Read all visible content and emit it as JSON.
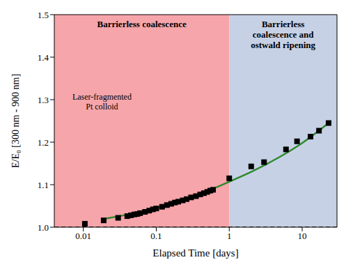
{
  "chart_data": {
    "type": "scatter",
    "log": "x",
    "grid": false,
    "x_label": "Elapsed Time [days]",
    "y_label": "E/E₀ [300 nm - 900 nm]",
    "xlim": [
      0.004,
      30
    ],
    "xticks": [
      0.01,
      0.1,
      1,
      10
    ],
    "ylim": [
      1,
      1.5
    ],
    "yticks": [
      {
        "value": 1,
        "label": "1.0"
      },
      {
        "value": 1.1,
        "label": "1.1"
      },
      {
        "value": 1.2,
        "label": "1.2"
      },
      {
        "value": 1.3,
        "label": "1.3"
      },
      {
        "value": 1.4,
        "label": "1.4"
      },
      {
        "value": 1.5,
        "label": "1.5"
      }
    ],
    "regions": [
      {
        "x": [
          0.004,
          1
        ],
        "color": "#f6a5aa",
        "label": "Barrierless coalescence"
      },
      {
        "x": [
          1,
          30
        ],
        "color": "#c7d1e5",
        "label": "Barrierless coalescence and ostwald ripening"
      }
    ],
    "annotations": [
      {
        "text": "Laser-fragmented Pt colloid",
        "x": 0.018,
        "y": 1.3
      }
    ],
    "series": [
      {
        "type": "scatter",
        "marker": "square",
        "color": "#000000",
        "x": [
          0.0105,
          0.019,
          0.03,
          0.04,
          0.045,
          0.05,
          0.055,
          0.06,
          0.07,
          0.08,
          0.09,
          0.1,
          0.12,
          0.14,
          0.16,
          0.18,
          0.2,
          0.23,
          0.26,
          0.3,
          0.35,
          0.4,
          0.45,
          0.5,
          0.55,
          0.6,
          1,
          2,
          3,
          6,
          8.5,
          13,
          17,
          23
        ],
        "values": [
          1.008,
          1.016,
          1.022,
          1.026,
          1.028,
          1.03,
          1.031,
          1.033,
          1.036,
          1.039,
          1.042,
          1.044,
          1.048,
          1.052,
          1.055,
          1.058,
          1.06,
          1.063,
          1.066,
          1.07,
          1.073,
          1.077,
          1.08,
          1.083,
          1.086,
          1.088,
          1.115,
          1.143,
          1.153,
          1.183,
          1.202,
          1.213,
          1.227,
          1.245
        ]
      },
      {
        "type": "line",
        "color": "#2d8a2d",
        "x": [
          0.02,
          0.05,
          0.1,
          0.2,
          0.5,
          1,
          2,
          5,
          10,
          25
        ],
        "values": [
          1.02,
          1.033,
          1.045,
          1.06,
          1.085,
          1.107,
          1.13,
          1.166,
          1.198,
          1.25
        ]
      },
      {
        "type": "line",
        "line_style": "dashed",
        "color": "#000000",
        "x": [
          0.004,
          30
        ],
        "values": [
          1,
          1
        ]
      }
    ]
  }
}
